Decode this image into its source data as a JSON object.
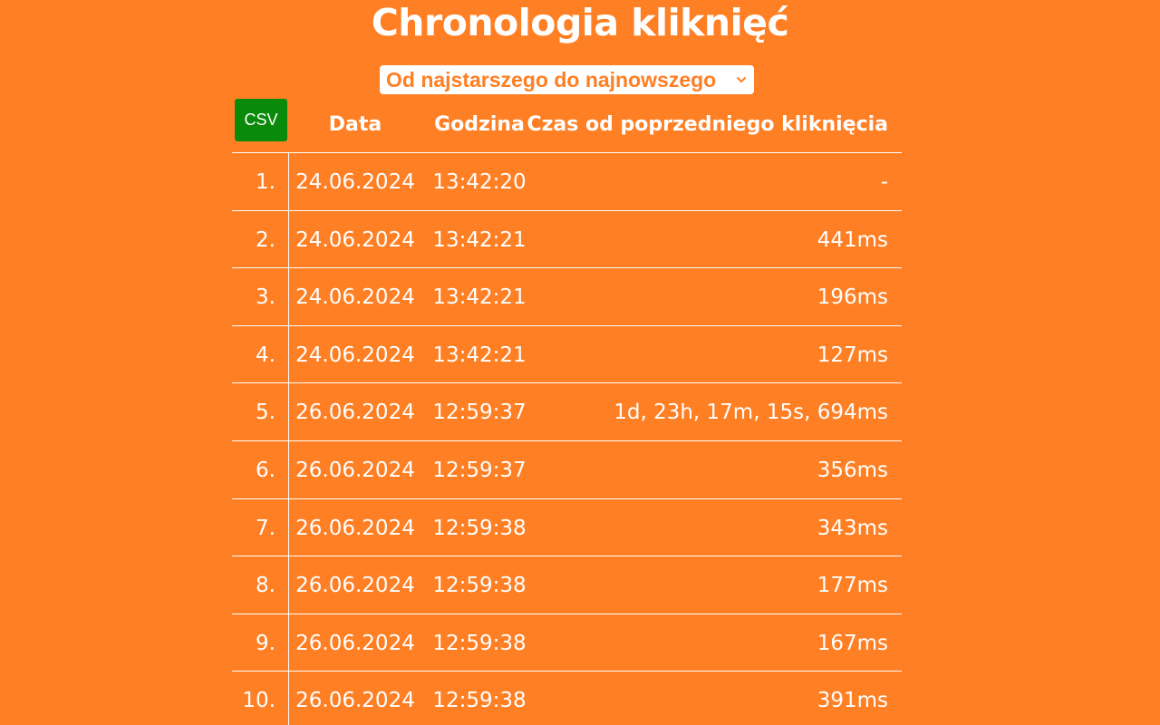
{
  "page": {
    "title": "Chronologia kliknięć",
    "sort_select": {
      "selected": "Od najstarszego do najnowszego"
    },
    "csv_button": "CSV"
  },
  "table": {
    "headers": {
      "date": "Data",
      "time": "Godzina",
      "delta": "Czas od poprzedniego kliknięcia"
    },
    "rows": [
      {
        "num": "1.",
        "date": "24.06.2024",
        "time": "13:42:20",
        "delta": "-"
      },
      {
        "num": "2.",
        "date": "24.06.2024",
        "time": "13:42:21",
        "delta": "441ms"
      },
      {
        "num": "3.",
        "date": "24.06.2024",
        "time": "13:42:21",
        "delta": "196ms"
      },
      {
        "num": "4.",
        "date": "24.06.2024",
        "time": "13:42:21",
        "delta": "127ms"
      },
      {
        "num": "5.",
        "date": "26.06.2024",
        "time": "12:59:37",
        "delta": "1d, 23h, 17m, 15s, 694ms"
      },
      {
        "num": "6.",
        "date": "26.06.2024",
        "time": "12:59:37",
        "delta": "356ms"
      },
      {
        "num": "7.",
        "date": "26.06.2024",
        "time": "12:59:38",
        "delta": "343ms"
      },
      {
        "num": "8.",
        "date": "26.06.2024",
        "time": "12:59:38",
        "delta": "177ms"
      },
      {
        "num": "9.",
        "date": "26.06.2024",
        "time": "12:59:38",
        "delta": "167ms"
      },
      {
        "num": "10.",
        "date": "26.06.2024",
        "time": "12:59:38",
        "delta": "391ms"
      }
    ]
  },
  "colors": {
    "background": "#ff7f24",
    "csv_button": "#0a8a0a",
    "text": "#ffffff"
  },
  "icons": {
    "select_arrow": "chevron-down-icon"
  }
}
